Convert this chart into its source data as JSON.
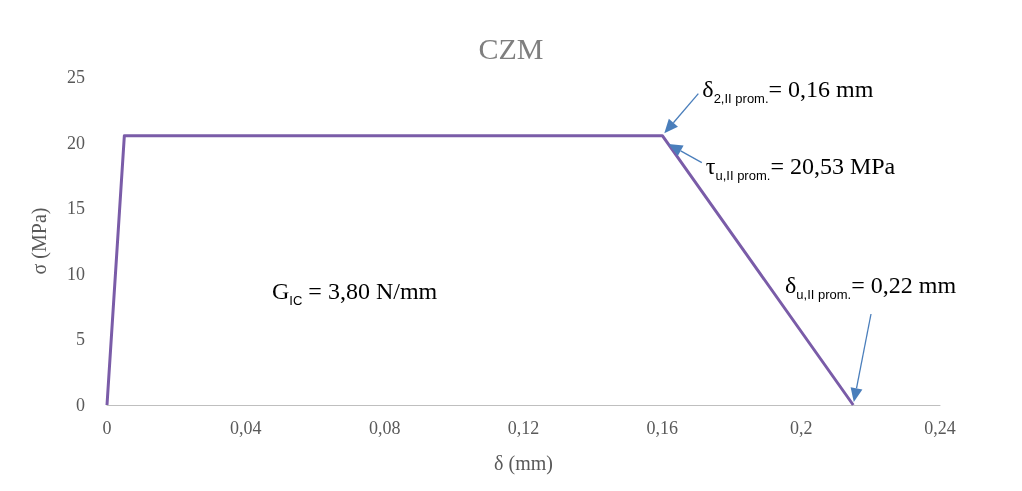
{
  "chart_data": {
    "type": "line",
    "title": "CZM",
    "xlabel": "δ (mm)",
    "ylabel": "σ (MPa)",
    "series": [
      {
        "color": "#7a5ca8",
        "x": [
          0,
          0.005,
          0.16,
          0.215
        ],
        "values": [
          0,
          20.53,
          20.53,
          0
        ]
      }
    ],
    "xlim": [
      0,
      0.24
    ],
    "xticks": [
      {
        "value": 0,
        "label": "0"
      },
      {
        "value": 0.04,
        "label": "0,04"
      },
      {
        "value": 0.08,
        "label": "0,08"
      },
      {
        "value": 0.12,
        "label": "0,12"
      },
      {
        "value": 0.16,
        "label": "0,16"
      },
      {
        "value": 0.2,
        "label": "0,2"
      },
      {
        "value": 0.24,
        "label": "0,24"
      }
    ],
    "ylim": [
      0,
      25
    ],
    "yticks": [
      0,
      5,
      10,
      15,
      20,
      25
    ],
    "grid": false,
    "marker": "none",
    "line_style": "solid",
    "annotations": [
      {
        "text": "δ$_{2,II prom.}$= 0,16 mm",
        "x": 0.16,
        "y": 20.53
      },
      {
        "text": "τ$_{u,II prom.}$= 20,53 MPa",
        "x": 0.161,
        "y": 20
      },
      "δ$_{u,II prom.}$= 0,22 mm",
      "G$_{IC}$ = 3,80 N/mm"
    ]
  }
}
